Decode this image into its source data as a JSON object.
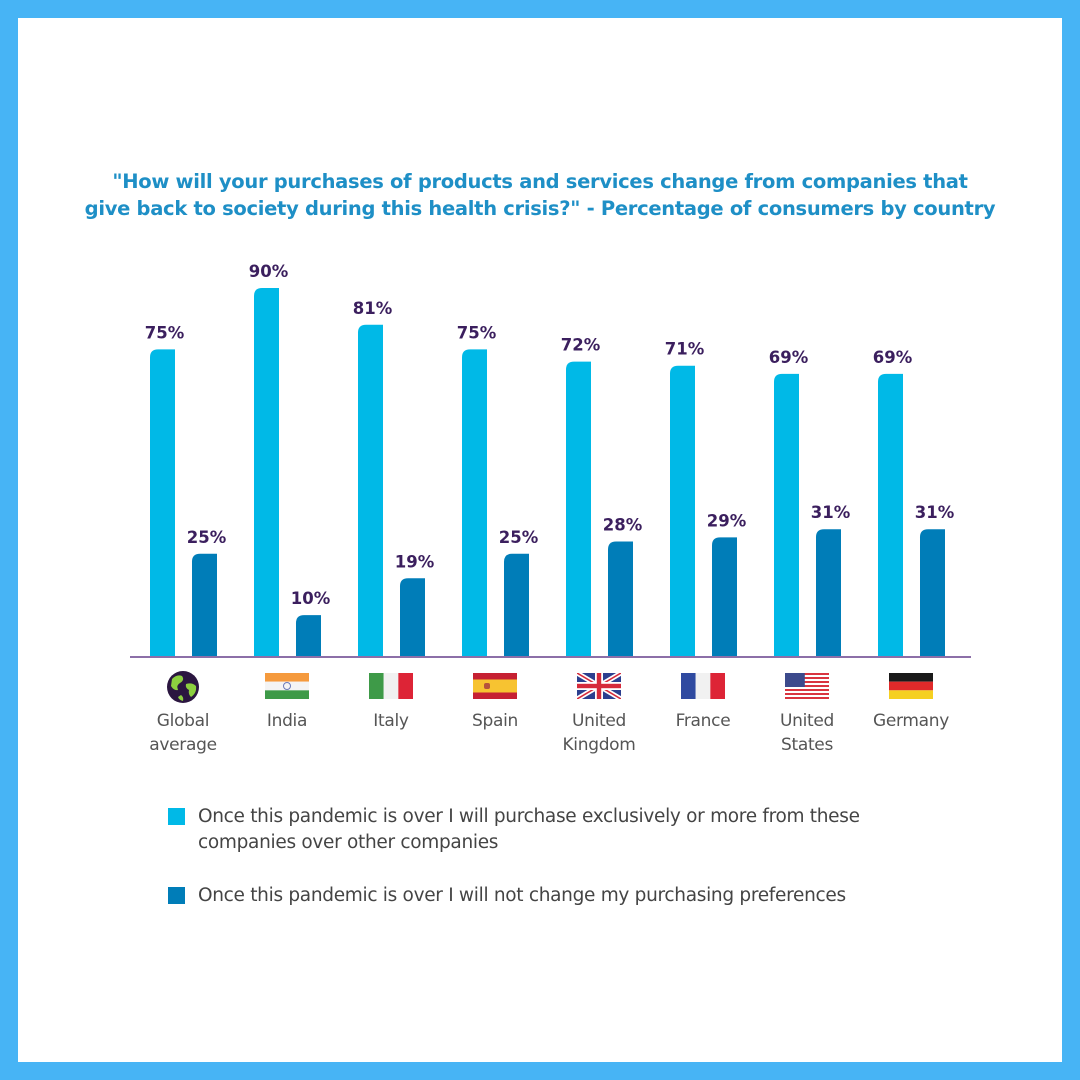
{
  "chart_data": {
    "type": "bar",
    "title": "\"How will your purchases of products and services change from companies that give back to society during this health crisis?\" - Percentage of consumers by country",
    "title_lines": [
      "\"How will your purchases of products and services change from companies that",
      "give back to society during this health crisis?\" - Percentage of consumers by country"
    ],
    "categories": [
      "Global average",
      "India",
      "Italy",
      "Spain",
      "United Kingdom",
      "France",
      "United States",
      "Germany"
    ],
    "category_lines": [
      [
        "Global",
        "average"
      ],
      [
        "India"
      ],
      [
        "Italy"
      ],
      [
        "Spain"
      ],
      [
        "United",
        "Kingdom"
      ],
      [
        "France"
      ],
      [
        "United",
        "States"
      ],
      [
        "Germany"
      ]
    ],
    "category_icons": [
      "globe-icon",
      "india-flag-icon",
      "italy-flag-icon",
      "spain-flag-icon",
      "uk-flag-icon",
      "france-flag-icon",
      "us-flag-icon",
      "germany-flag-icon"
    ],
    "series": [
      {
        "name": "Once this pandemic is over I will purchase exclusively or more from these companies over other companies",
        "color": "#00b9e7",
        "values": [
          75,
          90,
          81,
          75,
          72,
          71,
          69,
          69
        ],
        "labels": [
          "75%",
          "90%",
          "81%",
          "75%",
          "72%",
          "71%",
          "69%",
          "69%"
        ]
      },
      {
        "name": "Once this pandemic is over I will not change my purchasing preferences",
        "color": "#007db8",
        "values": [
          25,
          10,
          19,
          25,
          28,
          29,
          31,
          31
        ],
        "labels": [
          "25%",
          "10%",
          "19%",
          "25%",
          "28%",
          "29%",
          "31%",
          "31%"
        ]
      }
    ],
    "ylim": [
      0,
      90
    ],
    "unit": "%",
    "grid": false,
    "legend_position": "bottom-left"
  },
  "legend": [
    {
      "lines": [
        "Once this pandemic is over I will purchase exclusively or more from these",
        "companies over other companies"
      ],
      "color": "#00b9e7"
    },
    {
      "lines": [
        "Once this pandemic is over I will not change my purchasing preferences"
      ],
      "color": "#007db8"
    }
  ],
  "colors": {
    "frame": "#47b4f5",
    "title": "#1e8fc6",
    "value_label": "#3b1f5e",
    "axis": "#8c6fa8"
  }
}
